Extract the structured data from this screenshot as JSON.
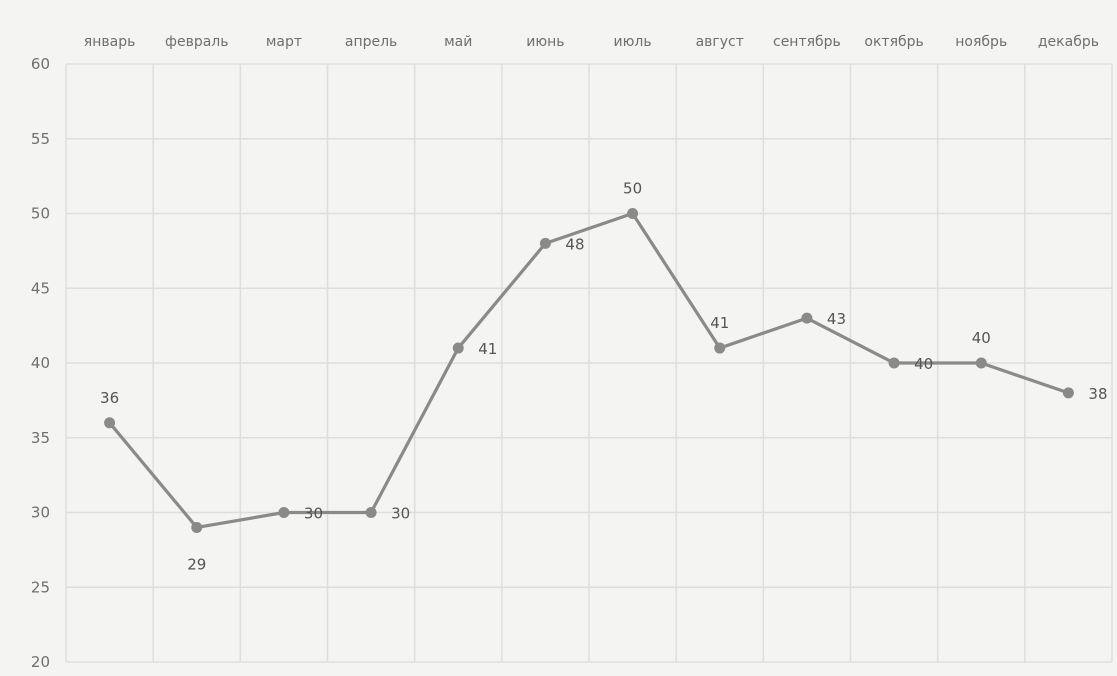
{
  "chart_data": {
    "type": "line",
    "categories": [
      "январь",
      "февраль",
      "март",
      "апрель",
      "май",
      "июнь",
      "июль",
      "август",
      "сентябрь",
      "октябрь",
      "ноябрь",
      "декабрь"
    ],
    "series": [
      {
        "values": [
          36,
          29,
          30,
          30,
          41,
          48,
          50,
          41,
          43,
          40,
          40,
          38
        ]
      }
    ],
    "y_ticks": [
      "20",
      "25",
      "30",
      "35",
      "40",
      "45",
      "50",
      "55",
      "60"
    ],
    "data_labels": [
      "36",
      "29",
      "30",
      "30",
      "41",
      "48",
      "50",
      "41",
      "43",
      "40",
      "40",
      "38"
    ],
    "ylim": [
      20,
      60
    ],
    "x_axis_position": "top",
    "grid": true,
    "legend": "none",
    "line_color": "#8a8a8a",
    "grid_color": "#dedede"
  }
}
